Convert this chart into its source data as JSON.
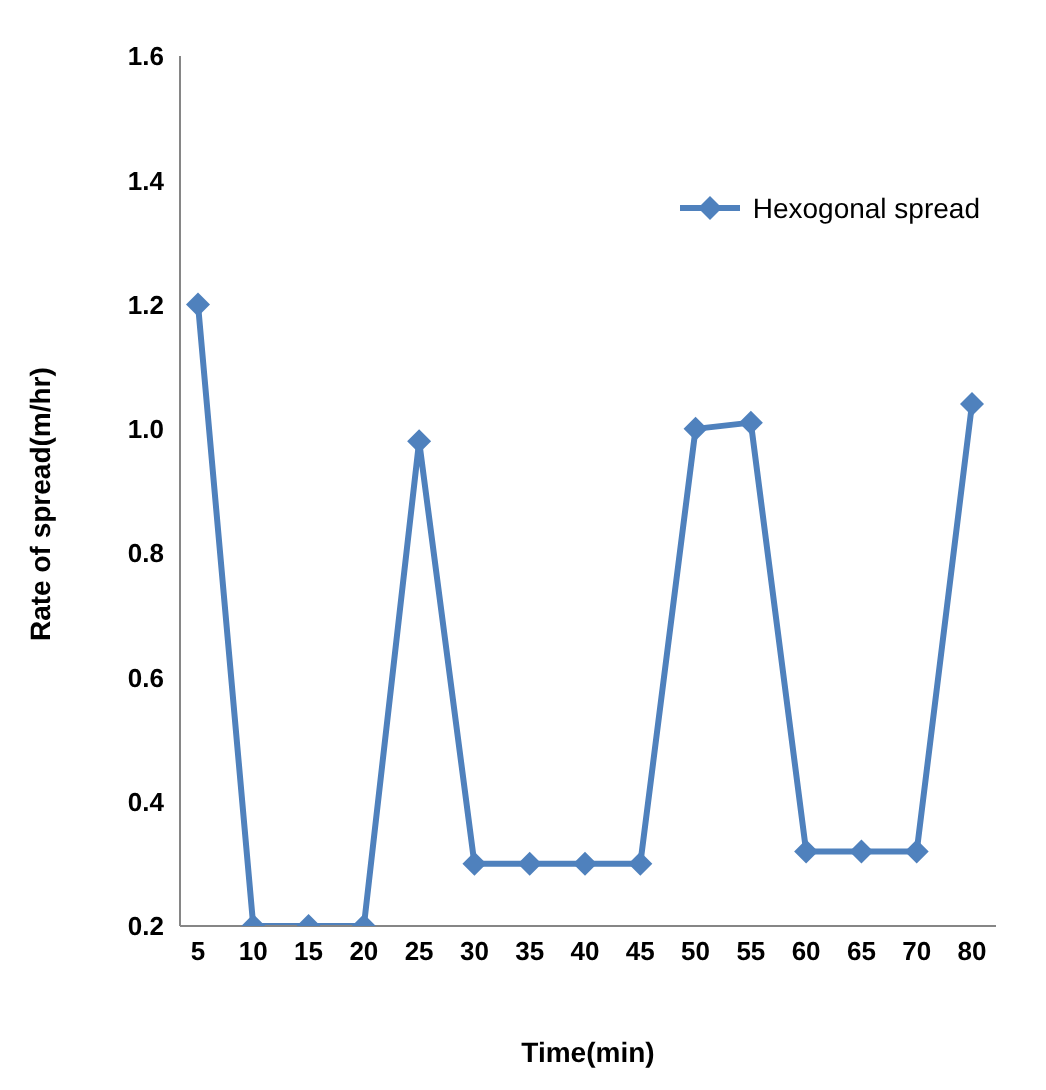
{
  "chart_data": {
    "type": "line",
    "xlabel": "Time(min)",
    "ylabel": "Rate of spread(m/hr)",
    "categories": [
      "5",
      "10",
      "15",
      "20",
      "25",
      "30",
      "35",
      "40",
      "45",
      "50",
      "55",
      "60",
      "65",
      "70",
      "80"
    ],
    "series": [
      {
        "name": "Hexogonal spread",
        "color": "#4f81bd",
        "values": [
          1.2,
          0.2,
          0.2,
          0.2,
          0.98,
          0.3,
          0.3,
          0.3,
          0.3,
          1.0,
          1.01,
          0.32,
          0.32,
          0.32,
          1.04
        ]
      }
    ],
    "ylim": [
      0.2,
      1.6
    ],
    "yticks": [
      {
        "value": 0.2,
        "label": "0.2"
      },
      {
        "value": 0.4,
        "label": "0.4"
      },
      {
        "value": 0.6,
        "label": "0.6"
      },
      {
        "value": 0.8,
        "label": "0.8"
      },
      {
        "value": 1.0,
        "label": "1.0"
      },
      {
        "value": 1.2,
        "label": "1.2"
      },
      {
        "value": 1.4,
        "label": "1.4"
      },
      {
        "value": 1.6,
        "label": "1.6"
      }
    ],
    "grid": false,
    "legend": "top right",
    "marker": "diamond",
    "line_style": "solid"
  }
}
